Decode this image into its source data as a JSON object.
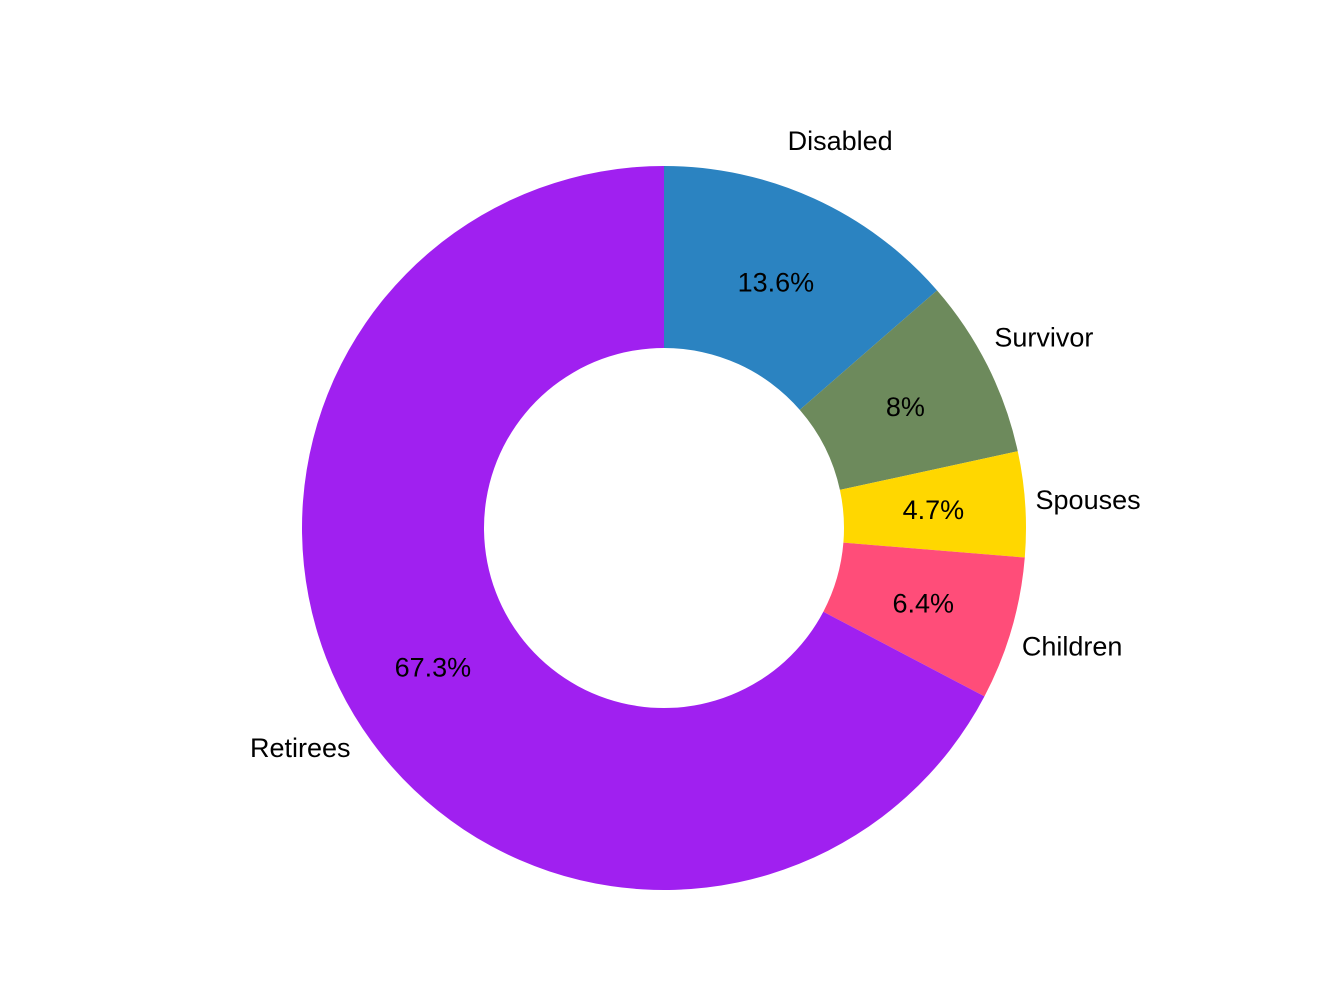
{
  "chart_data": {
    "type": "pie",
    "variant": "donut",
    "categories": [
      "Disabled",
      "Survivor",
      "Spouses",
      "Children",
      "Retirees"
    ],
    "values": [
      13.6,
      8,
      4.7,
      6.4,
      67.3
    ],
    "value_labels": [
      "13.6%",
      "8%",
      "4.7%",
      "6.4%",
      "67.3%"
    ],
    "colors": [
      "#2B83C1",
      "#6D8A5C",
      "#FFD700",
      "#FF4D79",
      "#A020F0"
    ],
    "start_angle_deg": 0,
    "direction": "clockwise",
    "legend": "none",
    "title": ""
  }
}
